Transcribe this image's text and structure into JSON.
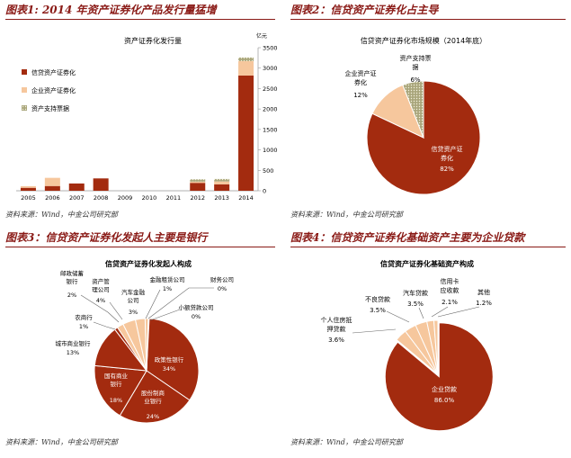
{
  "panels": [
    {
      "title": "图表1: 2014 年资产证券化产品发行量猛增",
      "source": "资料来源：Wind，中金公司研究部"
    },
    {
      "title": "图表2：信贷资产证券化占主导",
      "source": "资料来源：Wind，中金公司研究部"
    },
    {
      "title": "图表3：信贷资产证券化发起人主要是银行",
      "source": "资料来源：Wind，中金公司研究部"
    },
    {
      "title": "图表4：信贷资产证券化基础资产主要为企业贷款",
      "source": "资料来源：Wind，中金公司研究部"
    }
  ],
  "colors": {
    "credit": "#a32b0f",
    "corporate": "#f6c79d",
    "abn": "#a9a67c",
    "rule": "#8a1a16"
  },
  "chart_data": [
    {
      "type": "bar",
      "title": "资产证券化发行量",
      "ylabel": "亿元",
      "ylim": [
        0,
        3500
      ],
      "yticks": [
        "0",
        "500",
        "1000",
        "1500",
        "2000",
        "2500",
        "3000",
        "3500"
      ],
      "categories": [
        "2005",
        "2006",
        "2007",
        "2008",
        "2009",
        "2010",
        "2011",
        "2012",
        "2013",
        "2014"
      ],
      "series": [
        {
          "name": "信贷资产证券化",
          "values": [
            72,
            116,
            178,
            302,
            0,
            0,
            0,
            193,
            158,
            2820
          ]
        },
        {
          "name": "企业资产证券化",
          "values": [
            40,
            200,
            0,
            0,
            0,
            0,
            0,
            30,
            70,
            350
          ]
        },
        {
          "name": "资产支持票据",
          "values": [
            0,
            0,
            0,
            0,
            0,
            0,
            0,
            57,
            60,
            90
          ]
        }
      ],
      "legend": "left"
    },
    {
      "type": "pie",
      "title": "信贷资产证券化市场规模（2014年底）",
      "slices": [
        {
          "label": "信贷资产证券化",
          "value": 82,
          "display": "82%",
          "color": "#a32b0f"
        },
        {
          "label": "企业资产证券化",
          "value": 12,
          "display": "12%",
          "color": "#f6c79d"
        },
        {
          "label": "资产支持票据",
          "value": 6,
          "display": "6%",
          "color": "#a9a67c"
        }
      ]
    },
    {
      "type": "pie",
      "title": "信贷资产证券化发起人构成",
      "slices": [
        {
          "label": "政策性银行",
          "value": 34,
          "display": "34%",
          "color": "#a32b0f"
        },
        {
          "label": "股份制商业银行",
          "value": 24,
          "display": "24%",
          "color": "#a32b0f"
        },
        {
          "label": "国有商业银行",
          "value": 18,
          "display": "18%",
          "color": "#a32b0f"
        },
        {
          "label": "城市商业银行",
          "value": 13,
          "display": "13%",
          "color": "#a32b0f"
        },
        {
          "label": "农商行",
          "value": 1,
          "display": "1%",
          "color": "#a32b0f"
        },
        {
          "label": "邮政储蓄银行",
          "value": 2,
          "display": "2%",
          "color": "#f6c79d"
        },
        {
          "label": "资产管理公司",
          "value": 4,
          "display": "4%",
          "color": "#f6c79d"
        },
        {
          "label": "汽车金融公司",
          "value": 3,
          "display": "3%",
          "color": "#f6c79d"
        },
        {
          "label": "金融租赁公司",
          "value": 1,
          "display": "1%",
          "color": "#f6c79d"
        },
        {
          "label": "财务公司",
          "value": 0,
          "display": "0%",
          "color": "#f6c79d"
        },
        {
          "label": "小额贷款公司",
          "value": 0,
          "display": "0%",
          "color": "#f6c79d"
        }
      ]
    },
    {
      "type": "pie",
      "title": "信贷资产证券化基础资产构成",
      "slices": [
        {
          "label": "企业贷款",
          "value": 86.0,
          "display": "86.0%",
          "color": "#a32b0f"
        },
        {
          "label": "个人住房抵押贷款",
          "value": 3.6,
          "display": "3.6%",
          "color": "#f6c79d"
        },
        {
          "label": "不良贷款",
          "value": 3.5,
          "display": "3.5%",
          "color": "#f6c79d"
        },
        {
          "label": "汽车贷款",
          "value": 3.5,
          "display": "3.5%",
          "color": "#f6c79d"
        },
        {
          "label": "信用卡应收款",
          "value": 2.1,
          "display": "2.1%",
          "color": "#f6c79d"
        },
        {
          "label": "其他",
          "value": 1.2,
          "display": "1.2%",
          "color": "#f6c79d"
        }
      ]
    }
  ]
}
